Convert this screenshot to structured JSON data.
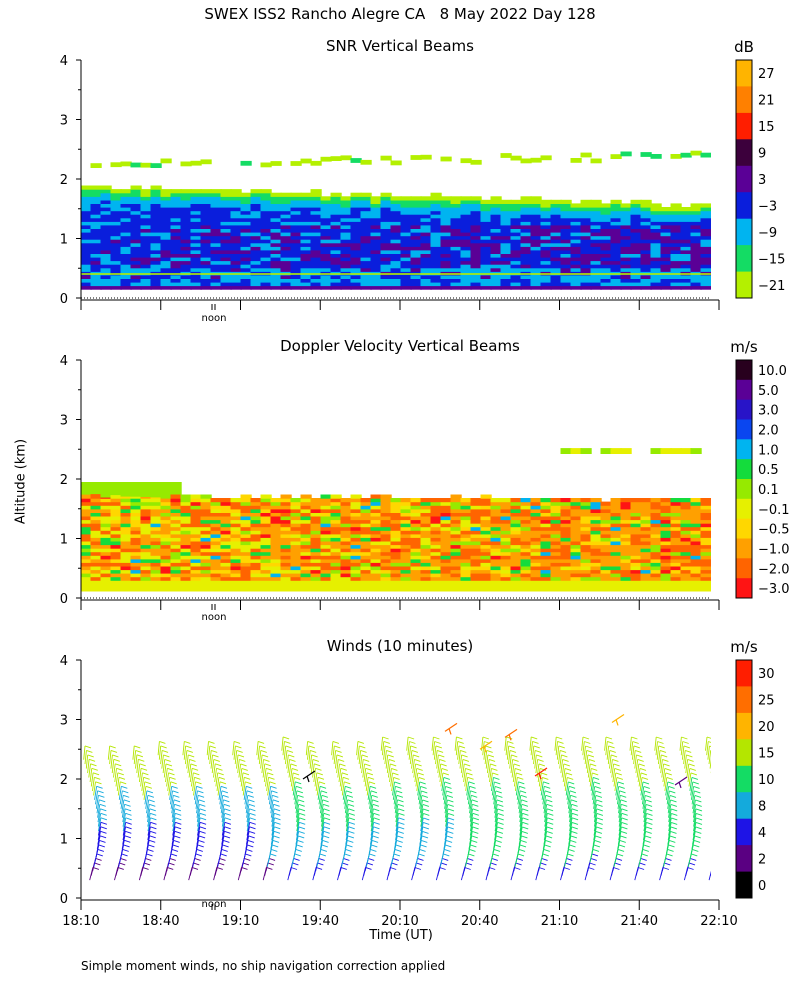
{
  "page": {
    "title": "SWEX ISS2 Rancho Alegre CA   8 May 2022 Day 128",
    "footnote": "Simple moment winds, no ship navigation correction applied",
    "ylabel": "Altitude (km)",
    "xlabel": "Time (UT)",
    "noon_label": "noon"
  },
  "chart_data": [
    {
      "type": "heatmap",
      "title": "SNR Vertical Beams",
      "unit": "dB",
      "y_ticks": [
        "0",
        "1",
        "2",
        "3",
        "4"
      ],
      "ylim": [
        0,
        4
      ],
      "colorbar": {
        "labels": [
          "27",
          "21",
          "15",
          "9",
          "3",
          "−3",
          "−9",
          "−15",
          "−21"
        ],
        "colors": [
          "#ffb400",
          "#ff8000",
          "#ff1e00",
          "#3c003c",
          "#5a0096",
          "#0a1edc",
          "#00b4f0",
          "#14dc64",
          "#b4f000"
        ]
      }
    },
    {
      "type": "heatmap",
      "title": "Doppler Velocity Vertical Beams",
      "unit": "m/s",
      "y_ticks": [
        "0",
        "1",
        "2",
        "3",
        "4"
      ],
      "ylim": [
        0,
        4
      ],
      "colorbar": {
        "labels": [
          "10.0",
          "5.0",
          "3.0",
          "2.0",
          "1.0",
          "0.5",
          "0.1",
          "−0.1",
          "−0.5",
          "−1.0",
          "−2.0",
          "−3.0"
        ],
        "colors": [
          "#28001e",
          "#5a0096",
          "#2814c8",
          "#0a46f0",
          "#00b4f0",
          "#14dc3c",
          "#96ea00",
          "#e6f000",
          "#ffd700",
          "#ffa000",
          "#ff6400",
          "#ff1414"
        ]
      }
    },
    {
      "type": "wind_barbs",
      "title": "Winds (10 minutes)",
      "unit": "m/s",
      "y_ticks": [
        "0",
        "1",
        "2",
        "3",
        "4"
      ],
      "ylim": [
        0,
        4
      ],
      "x_ticks": [
        "18:10",
        "18:40",
        "19:10",
        "19:40",
        "20:10",
        "20:40",
        "21:10",
        "21:40",
        "22:10"
      ],
      "colorbar": {
        "labels": [
          "30",
          "25",
          "20",
          "15",
          "10",
          "8",
          "4",
          "2",
          "0"
        ],
        "colors": [
          "#ff1e00",
          "#ff6e00",
          "#ffb400",
          "#b4e600",
          "#14dc64",
          "#14aadc",
          "#1e14e6",
          "#5a0082",
          "#000000"
        ]
      }
    }
  ]
}
